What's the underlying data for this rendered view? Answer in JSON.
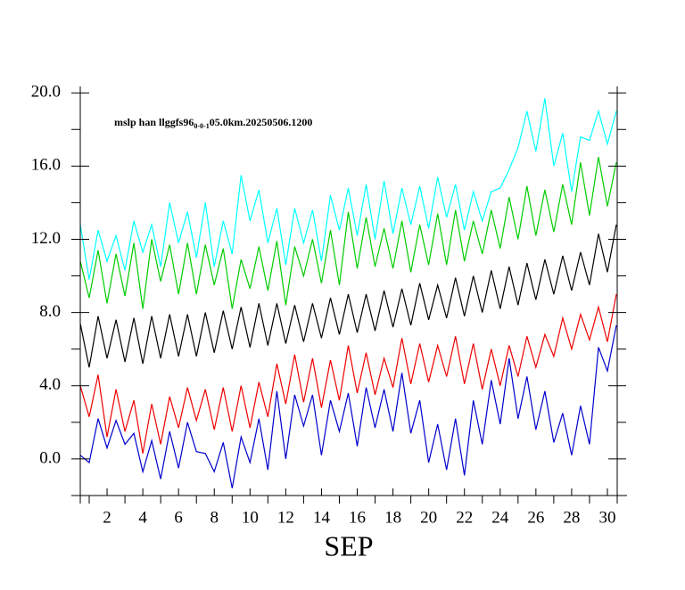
{
  "chart_data": {
    "type": "line",
    "title": "mslp han llggfs96",
    "title_subscript": "0-0-1",
    "title_suffix": "05.0km.20250506.1200",
    "xlabel": "SEP",
    "x": [
      0.5,
      1,
      1.5,
      2,
      2.5,
      3,
      3.5,
      4,
      4.5,
      5,
      5.5,
      6,
      6.5,
      7,
      7.5,
      8,
      8.5,
      9,
      9.5,
      10,
      10.5,
      11,
      11.5,
      12,
      12.5,
      13,
      13.5,
      14,
      14.5,
      15,
      15.5,
      16,
      16.5,
      17,
      17.5,
      18,
      18.5,
      19,
      19.5,
      20,
      20.5,
      21,
      21.5,
      22,
      22.5,
      23,
      23.5,
      24,
      24.5,
      25,
      25.5,
      26,
      26.5,
      27,
      27.5,
      28,
      28.5,
      29,
      29.5,
      30,
      30.5
    ],
    "series": [
      {
        "color": "#00ffff",
        "values": [
          12.8,
          9.8,
          12.5,
          10.8,
          12.2,
          10.3,
          13.0,
          11.3,
          12.8,
          10.5,
          14.0,
          11.8,
          13.5,
          11.0,
          14.0,
          10.5,
          13.0,
          11.2,
          15.5,
          13.0,
          14.7,
          11.8,
          13.7,
          10.6,
          13.7,
          11.8,
          13.6,
          10.8,
          14.4,
          12.5,
          14.8,
          12.2,
          15.0,
          12.0,
          15.2,
          12.3,
          14.8,
          12.8,
          14.9,
          12.6,
          15.4,
          13.2,
          15.0,
          12.5,
          14.6,
          13.0,
          14.6,
          14.8,
          15.8,
          17.0,
          19.0,
          16.8,
          19.7,
          16.0,
          17.8,
          14.6,
          17.6,
          17.4,
          19.0,
          17.2,
          19.0
        ]
      },
      {
        "color": "#00cc00",
        "values": [
          10.8,
          8.8,
          11.4,
          8.5,
          11.2,
          8.9,
          11.8,
          8.2,
          12.0,
          9.7,
          11.7,
          9.0,
          11.8,
          9.0,
          11.7,
          9.5,
          11.5,
          8.2,
          10.9,
          9.3,
          11.6,
          9.2,
          11.9,
          8.4,
          11.6,
          10.0,
          12.0,
          9.6,
          12.5,
          9.5,
          13.5,
          10.4,
          13.2,
          10.5,
          12.6,
          10.4,
          13.0,
          10.2,
          12.8,
          10.6,
          13.4,
          10.6,
          13.6,
          10.8,
          13.0,
          11.2,
          13.6,
          11.5,
          14.3,
          12.0,
          14.9,
          12.2,
          14.7,
          12.4,
          15.0,
          12.8,
          16.2,
          13.3,
          16.5,
          13.8,
          16.2
        ]
      },
      {
        "color": "#000000",
        "values": [
          7.4,
          5.0,
          7.8,
          5.5,
          7.6,
          5.3,
          7.7,
          5.2,
          7.8,
          5.5,
          7.9,
          5.6,
          7.9,
          5.6,
          8.0,
          5.8,
          8.1,
          6.0,
          8.3,
          6.1,
          8.5,
          6.2,
          8.5,
          6.3,
          8.4,
          6.4,
          8.5,
          6.6,
          8.8,
          6.8,
          9.0,
          6.9,
          9.0,
          7.0,
          9.2,
          7.2,
          9.3,
          7.3,
          9.6,
          7.6,
          9.5,
          7.7,
          9.9,
          7.8,
          10.0,
          8.0,
          10.3,
          8.2,
          10.5,
          8.4,
          10.7,
          8.7,
          10.9,
          9.0,
          11.1,
          9.2,
          11.3,
          9.5,
          12.3,
          10.2,
          12.8
        ]
      },
      {
        "color": "#ee0000",
        "values": [
          4.0,
          2.3,
          4.6,
          1.2,
          3.8,
          1.5,
          3.2,
          0.3,
          3.0,
          0.8,
          3.4,
          1.7,
          3.9,
          2.1,
          3.8,
          1.6,
          3.9,
          1.5,
          4.0,
          1.7,
          4.2,
          2.3,
          5.2,
          3.0,
          5.7,
          3.1,
          5.5,
          2.8,
          5.4,
          3.2,
          6.2,
          3.6,
          5.8,
          3.5,
          5.5,
          3.9,
          6.6,
          4.1,
          6.3,
          4.2,
          6.2,
          4.5,
          6.7,
          4.1,
          6.3,
          3.8,
          6.0,
          4.0,
          6.2,
          4.5,
          6.7,
          5.0,
          6.8,
          5.6,
          7.7,
          6.0,
          7.9,
          6.5,
          8.3,
          6.4,
          9.0
        ]
      },
      {
        "color": "#0000cc",
        "values": [
          0.2,
          -0.2,
          2.2,
          0.6,
          2.1,
          0.8,
          1.4,
          -0.7,
          1.0,
          -1.1,
          1.5,
          -0.5,
          2.0,
          0.4,
          0.3,
          -0.7,
          0.9,
          -1.6,
          1.2,
          -0.2,
          2.2,
          -0.6,
          3.7,
          0.0,
          3.5,
          1.8,
          3.5,
          0.2,
          3.2,
          1.5,
          3.6,
          0.7,
          3.9,
          1.7,
          3.8,
          1.5,
          4.7,
          1.4,
          3.2,
          -0.2,
          1.9,
          -0.6,
          2.2,
          -0.9,
          3.2,
          0.8,
          4.3,
          1.9,
          5.5,
          2.2,
          4.5,
          1.6,
          3.7,
          0.9,
          2.5,
          0.2,
          2.9,
          0.8,
          6.1,
          4.8,
          7.3
        ]
      }
    ],
    "xlim": [
      0.5,
      30.55
    ],
    "ylim": [
      -2,
      20.35
    ],
    "xticks": [
      2,
      4,
      6,
      8,
      10,
      12,
      14,
      16,
      18,
      20,
      22,
      24,
      26,
      28,
      30
    ],
    "xminorticks": [
      1,
      3,
      5,
      7,
      9,
      11,
      13,
      15,
      17,
      19,
      21,
      23,
      25,
      27,
      29
    ],
    "yticks": [
      {
        "value": 0,
        "label": "0.0"
      },
      {
        "value": 4,
        "label": "4.0"
      },
      {
        "value": 8,
        "label": "8.0"
      },
      {
        "value": 12,
        "label": "12.0"
      },
      {
        "value": 16,
        "label": "16.0"
      },
      {
        "value": 20,
        "label": "20.0"
      }
    ],
    "yminorticks": [
      -2,
      2,
      6,
      10,
      14,
      18
    ]
  }
}
